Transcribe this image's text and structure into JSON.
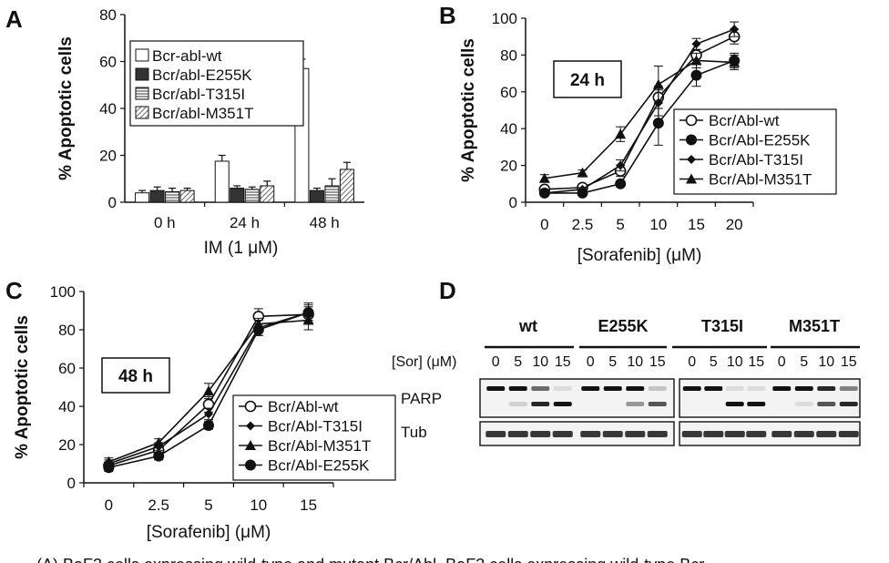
{
  "panels": {
    "A": {
      "letter": "A"
    },
    "B": {
      "letter": "B",
      "box_label": "24 h"
    },
    "C": {
      "letter": "C",
      "box_label": "48 h"
    },
    "D": {
      "letter": "D",
      "sor_label": "[Sor] (μM)",
      "groups": [
        "wt",
        "E255K",
        "T315I",
        "M351T"
      ],
      "lane_labels": [
        "0",
        "5",
        "10",
        "15"
      ],
      "rows": [
        "PARP",
        "Tub"
      ]
    }
  },
  "caption_fragment": "... (A) BaF3 cells expressing wild-type and mutant Bcr/Abl. BaF3 cells expressing wild-type Bcr...",
  "chart_data": [
    {
      "panel": "A",
      "type": "bar",
      "categories": [
        "0 h",
        "24 h",
        "48 h"
      ],
      "series": [
        {
          "name": "Bcr-abl-wt",
          "values": [
            4,
            17.5,
            57
          ],
          "errors": [
            1,
            2.5,
            4
          ],
          "color": "#ffffff"
        },
        {
          "name": "Bcr/abl-E255K",
          "values": [
            5,
            6,
            5
          ],
          "errors": [
            1.5,
            1,
            1
          ],
          "color": "#333333"
        },
        {
          "name": "Bcr/abl-T315I",
          "values": [
            4.5,
            5.5,
            7
          ],
          "errors": [
            1.5,
            1,
            3
          ],
          "color": "#aaaaaa"
        },
        {
          "name": "Bcr/abl-M351T",
          "values": [
            5,
            7,
            14
          ],
          "errors": [
            1,
            2,
            3
          ],
          "color": "#d4d4d4"
        }
      ],
      "xlabel": "IM (1 μM)",
      "ylabel": "% Apoptotic cells",
      "ylim": [
        0,
        80
      ],
      "yticks": [
        "0",
        "20",
        "40",
        "60",
        "80"
      ],
      "legend": "top-left"
    },
    {
      "panel": "B",
      "type": "line",
      "x": [
        "0",
        "2.5",
        "5",
        "10",
        "15",
        "20"
      ],
      "series": [
        {
          "name": "Bcr/Abl-wt",
          "marker": "open-circle",
          "values": [
            7,
            8,
            17,
            57,
            80,
            90
          ],
          "errors": [
            1.5,
            1.5,
            3,
            6,
            3,
            4
          ]
        },
        {
          "name": "Bcr/Abl-E255K",
          "marker": "filled-circle",
          "values": [
            5,
            5,
            10,
            43,
            69,
            77
          ],
          "errors": [
            1,
            1,
            1.5,
            12,
            6,
            4
          ]
        },
        {
          "name": "Bcr/Abl-T315I",
          "marker": "diamond",
          "values": [
            5,
            7,
            20,
            54,
            86,
            94
          ],
          "errors": [
            1,
            1,
            3,
            7,
            3,
            4
          ]
        },
        {
          "name": "Bcr/Abl-M351T",
          "marker": "triangle",
          "values": [
            13,
            16,
            37,
            64,
            77,
            76
          ],
          "errors": [
            2,
            1.5,
            4,
            10,
            4,
            4
          ]
        }
      ],
      "xlabel": "[Sorafenib] (μM)",
      "ylabel": "% Apoptotic cells",
      "ylim": [
        0,
        100
      ],
      "yticks": [
        "0",
        "20",
        "40",
        "60",
        "80",
        "100"
      ],
      "legend": "bottom-right"
    },
    {
      "panel": "C",
      "type": "line",
      "x": [
        "0",
        "2.5",
        "5",
        "10",
        "15"
      ],
      "series": [
        {
          "name": "Bcr/Abl-wt",
          "marker": "open-circle",
          "values": [
            9,
            17,
            41,
            87,
            88
          ],
          "errors": [
            2,
            2,
            4,
            4,
            4
          ]
        },
        {
          "name": "Bcr/Abl-T315I",
          "marker": "diamond",
          "values": [
            10,
            19,
            36,
            81,
            89
          ],
          "errors": [
            2,
            2,
            3,
            4,
            5
          ]
        },
        {
          "name": "Bcr/Abl-M351T",
          "marker": "triangle",
          "values": [
            11,
            21,
            48,
            83,
            85
          ],
          "errors": [
            2,
            2,
            4,
            3,
            5
          ]
        },
        {
          "name": "Bcr/Abl-E255K",
          "marker": "filled-circle",
          "values": [
            8,
            14,
            30,
            80,
            89
          ],
          "errors": [
            2,
            2,
            2,
            3,
            4
          ]
        }
      ],
      "xlabel": "[Sorafenib] (μM)",
      "ylabel": "% Apoptotic cells",
      "ylim": [
        0,
        100
      ],
      "yticks": [
        "0",
        "20",
        "40",
        "60",
        "80",
        "100"
      ],
      "legend": "bottom-right"
    }
  ]
}
